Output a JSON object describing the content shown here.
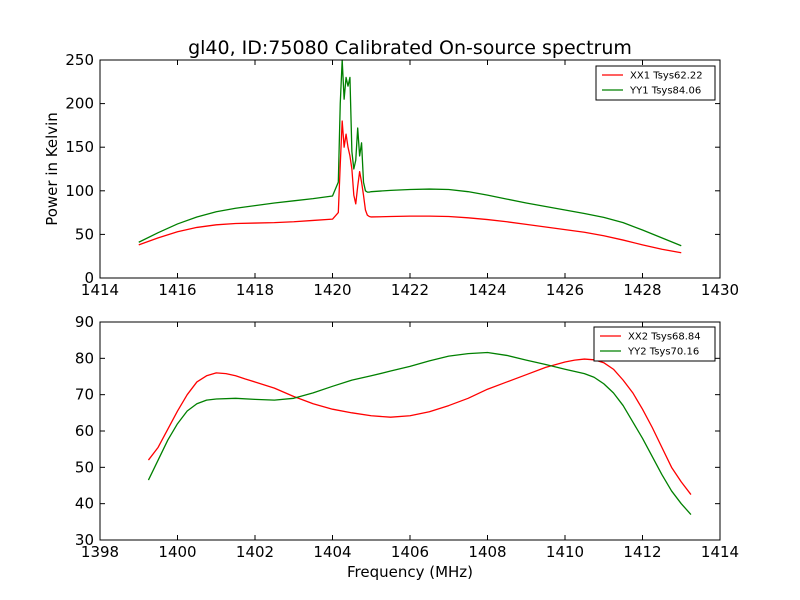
{
  "figure": {
    "title": "gl40, ID:75080 Calibrated On-source spectrum",
    "ylabel": "Power in Kelvin",
    "xlabel": "Frequency (MHz)"
  },
  "chart_data": [
    {
      "type": "line",
      "title": "gl40, ID:75080 Calibrated On-source spectrum",
      "ylabel": "Power in Kelvin",
      "xlabel": "",
      "xlim": [
        1414,
        1430
      ],
      "ylim": [
        0,
        250
      ],
      "xticks": [
        1414,
        1416,
        1418,
        1420,
        1422,
        1424,
        1426,
        1428,
        1430
      ],
      "yticks": [
        0,
        50,
        100,
        150,
        200,
        250
      ],
      "grid": false,
      "legend_position": "top-right",
      "series": [
        {
          "name": "XX1 Tsys62.22",
          "color": "#ff0000",
          "x": [
            1415.0,
            1415.5,
            1416.0,
            1416.5,
            1417.0,
            1417.5,
            1418.0,
            1418.5,
            1419.0,
            1419.5,
            1420.0,
            1420.15,
            1420.2,
            1420.25,
            1420.3,
            1420.35,
            1420.4,
            1420.45,
            1420.5,
            1420.55,
            1420.6,
            1420.65,
            1420.7,
            1420.75,
            1420.8,
            1420.85,
            1420.9,
            1420.95,
            1421.0,
            1421.5,
            1422.0,
            1422.5,
            1423.0,
            1423.5,
            1424.0,
            1424.5,
            1425.0,
            1425.5,
            1426.0,
            1426.5,
            1427.0,
            1427.5,
            1428.0,
            1428.5,
            1429.0
          ],
          "y": [
            38,
            46,
            53,
            58,
            61,
            62.5,
            63,
            63.5,
            64.5,
            66,
            67.5,
            75,
            130,
            180,
            150,
            165,
            150,
            140,
            125,
            95,
            85,
            105,
            122,
            110,
            95,
            78,
            72,
            70.5,
            70,
            70.5,
            71,
            71,
            70.5,
            69,
            67,
            64.5,
            61.5,
            58.5,
            55.5,
            52.5,
            48.5,
            43.5,
            38,
            33,
            29
          ]
        },
        {
          "name": "YY1 Tsys84.06",
          "color": "#008000",
          "x": [
            1415.0,
            1415.5,
            1416.0,
            1416.5,
            1417.0,
            1417.5,
            1418.0,
            1418.5,
            1419.0,
            1419.5,
            1420.0,
            1420.15,
            1420.2,
            1420.25,
            1420.3,
            1420.35,
            1420.4,
            1420.45,
            1420.5,
            1420.55,
            1420.6,
            1420.65,
            1420.7,
            1420.75,
            1420.8,
            1420.85,
            1420.9,
            1420.95,
            1421.0,
            1421.5,
            1422.0,
            1422.5,
            1423.0,
            1423.5,
            1424.0,
            1424.5,
            1425.0,
            1425.5,
            1426.0,
            1426.5,
            1427.0,
            1427.5,
            1428.0,
            1428.5,
            1429.0
          ],
          "y": [
            41,
            52,
            62,
            70,
            76,
            80,
            83,
            86,
            88.5,
            91,
            94,
            110,
            200,
            250,
            205,
            230,
            220,
            230,
            145,
            125,
            135,
            172,
            140,
            155,
            110,
            100,
            98.5,
            98.5,
            99,
            100.5,
            101.5,
            102,
            101.5,
            99,
            95,
            90.5,
            86,
            82,
            78,
            74,
            69.5,
            63.5,
            55,
            46,
            37
          ]
        }
      ]
    },
    {
      "type": "line",
      "title": "",
      "ylabel": "",
      "xlabel": "Frequency (MHz)",
      "xlim": [
        1398,
        1414
      ],
      "ylim": [
        30,
        90
      ],
      "xticks": [
        1398,
        1400,
        1402,
        1404,
        1406,
        1408,
        1410,
        1412,
        1414
      ],
      "yticks": [
        30,
        40,
        50,
        60,
        70,
        80,
        90
      ],
      "grid": false,
      "legend_position": "top-right",
      "series": [
        {
          "name": "XX2 Tsys68.84",
          "color": "#ff0000",
          "x": [
            1399.25,
            1399.5,
            1399.75,
            1400.0,
            1400.25,
            1400.5,
            1400.75,
            1401.0,
            1401.25,
            1401.5,
            1401.75,
            1402.0,
            1402.5,
            1403.0,
            1403.5,
            1404.0,
            1404.5,
            1405.0,
            1405.5,
            1406.0,
            1406.5,
            1407.0,
            1407.5,
            1408.0,
            1408.5,
            1409.0,
            1409.5,
            1410.0,
            1410.25,
            1410.5,
            1410.75,
            1411.0,
            1411.25,
            1411.5,
            1411.75,
            1412.0,
            1412.25,
            1412.5,
            1412.75,
            1413.0,
            1413.25
          ],
          "y": [
            52,
            55.5,
            60.5,
            65.5,
            70,
            73.5,
            75.2,
            76,
            75.8,
            75.2,
            74.3,
            73.5,
            71.8,
            69.5,
            67.5,
            66,
            65,
            64.2,
            63.8,
            64.2,
            65.3,
            67,
            69,
            71.5,
            73.5,
            75.5,
            77.5,
            79,
            79.5,
            79.8,
            79.6,
            78.8,
            77,
            74,
            70.5,
            66,
            61,
            55.5,
            50,
            46,
            42.5
          ]
        },
        {
          "name": "YY2 Tsys70.16",
          "color": "#008000",
          "x": [
            1399.25,
            1399.5,
            1399.75,
            1400.0,
            1400.25,
            1400.5,
            1400.75,
            1401.0,
            1401.5,
            1402.0,
            1402.5,
            1403.0,
            1403.5,
            1404.0,
            1404.5,
            1405.0,
            1405.5,
            1406.0,
            1406.5,
            1407.0,
            1407.5,
            1408.0,
            1408.5,
            1409.0,
            1409.5,
            1410.0,
            1410.5,
            1410.75,
            1411.0,
            1411.25,
            1411.5,
            1411.75,
            1412.0,
            1412.25,
            1412.5,
            1412.75,
            1413.0,
            1413.25
          ],
          "y": [
            46.5,
            52,
            57.5,
            62,
            65.5,
            67.5,
            68.5,
            68.8,
            69,
            68.7,
            68.5,
            69,
            70.5,
            72.3,
            74,
            75.2,
            76.5,
            77.8,
            79.3,
            80.6,
            81.3,
            81.6,
            80.8,
            79.5,
            78.3,
            77,
            75.8,
            74.8,
            73,
            70.5,
            67,
            62.5,
            58,
            53,
            48,
            43.5,
            40,
            37
          ]
        }
      ]
    }
  ]
}
